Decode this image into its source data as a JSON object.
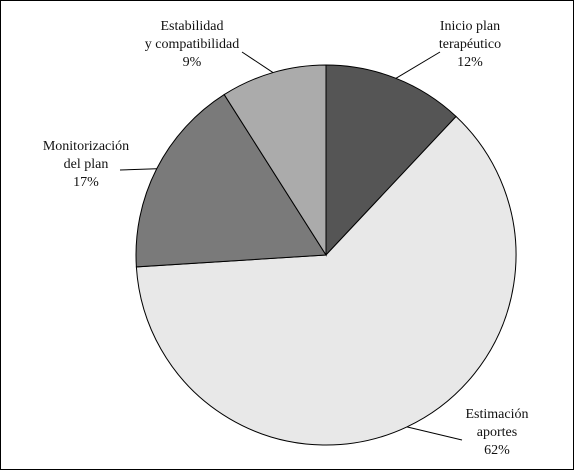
{
  "chart_data": {
    "type": "pie",
    "categories": [
      "Inicio plan terapéutico",
      "Estimación aportes",
      "Monitorización del plan",
      "Estabilidad y compatibilidad"
    ],
    "values": [
      12,
      62,
      17,
      9
    ],
    "value_labels": [
      "12%",
      "62%",
      "17%",
      "9%"
    ],
    "colors": [
      "#555555",
      "#e8e8e8",
      "#7a7a7a",
      "#ababab"
    ]
  }
}
